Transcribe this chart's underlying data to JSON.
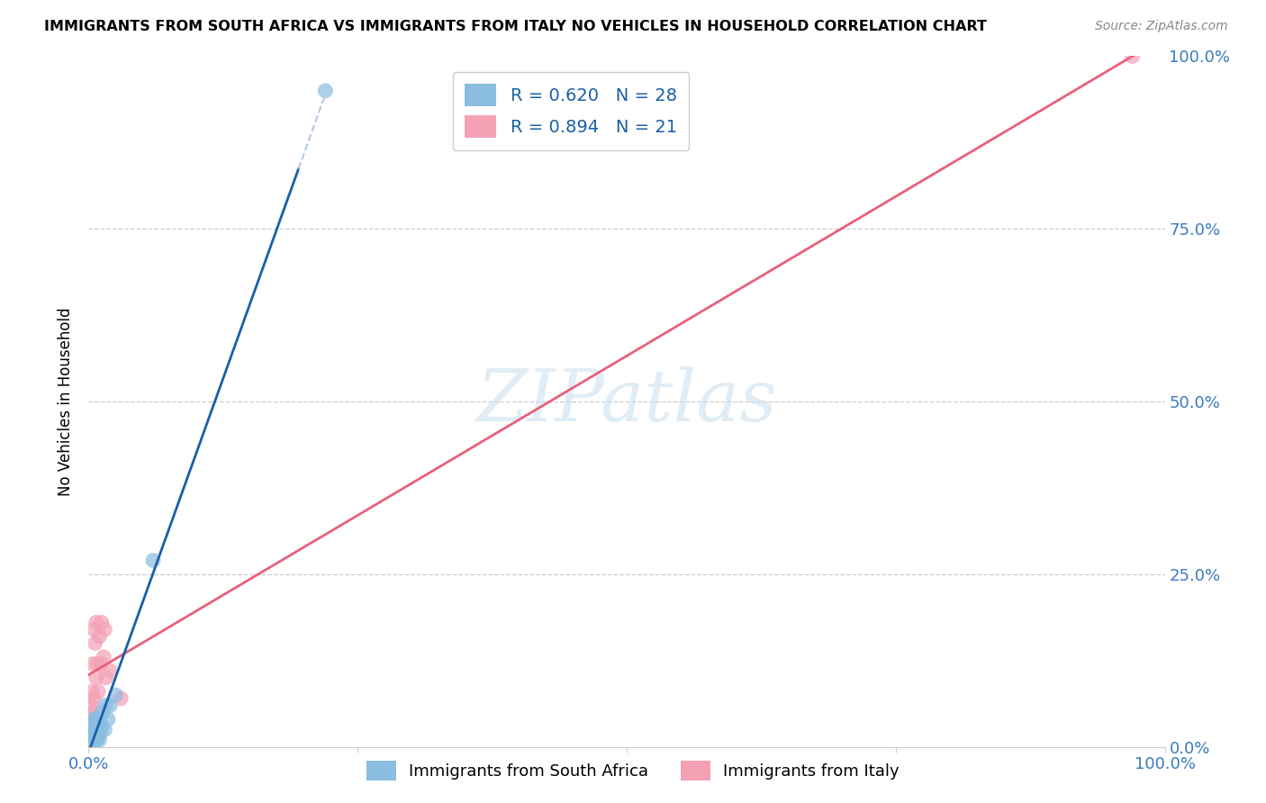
{
  "title": "IMMIGRANTS FROM SOUTH AFRICA VS IMMIGRANTS FROM ITALY NO VEHICLES IN HOUSEHOLD CORRELATION CHART",
  "source": "Source: ZipAtlas.com",
  "ylabel": "No Vehicles in Household",
  "xlim": [
    0,
    1.0
  ],
  "ylim": [
    0,
    1.0
  ],
  "watermark_text": "ZIPatlas",
  "south_africa_R": 0.62,
  "south_africa_N": 28,
  "italy_R": 0.894,
  "italy_N": 21,
  "south_africa_color": "#8bbde0",
  "italy_color": "#f4a0b5",
  "south_africa_line_color": "#1a5fa8",
  "italy_line_color": "#e8607a",
  "dashed_line_color": "#b0c8e0",
  "south_africa_x": [
    0.001,
    0.002,
    0.002,
    0.003,
    0.003,
    0.004,
    0.004,
    0.005,
    0.005,
    0.006,
    0.006,
    0.007,
    0.007,
    0.008,
    0.008,
    0.009,
    0.01,
    0.01,
    0.011,
    0.012,
    0.013,
    0.015,
    0.016,
    0.018,
    0.02,
    0.025,
    0.06,
    0.22
  ],
  "south_africa_y": [
    0.01,
    0.01,
    0.02,
    0.01,
    0.03,
    0.02,
    0.03,
    0.02,
    0.04,
    0.01,
    0.03,
    0.02,
    0.04,
    0.01,
    0.03,
    0.02,
    0.01,
    0.04,
    0.02,
    0.03,
    0.05,
    0.025,
    0.06,
    0.04,
    0.06,
    0.075,
    0.27,
    0.95
  ],
  "italy_x": [
    0.001,
    0.002,
    0.003,
    0.003,
    0.004,
    0.005,
    0.005,
    0.006,
    0.007,
    0.007,
    0.008,
    0.009,
    0.01,
    0.011,
    0.012,
    0.014,
    0.015,
    0.016,
    0.02,
    0.03,
    0.97
  ],
  "italy_y": [
    0.04,
    0.06,
    0.05,
    0.08,
    0.12,
    0.07,
    0.17,
    0.15,
    0.1,
    0.18,
    0.12,
    0.08,
    0.16,
    0.12,
    0.18,
    0.13,
    0.17,
    0.1,
    0.11,
    0.07,
    1.0
  ],
  "legend_color": "#1a5fa8",
  "legend_fontsize": 14,
  "title_fontsize": 11.5,
  "axis_tick_color": "#3a7abf",
  "grid_color": "#cccccc",
  "sa_line_x0": 0.0,
  "sa_line_x_solid_end": 0.195,
  "sa_line_x_dash_end": 0.22,
  "italy_line_x0": 0.0,
  "italy_line_x1": 1.0
}
